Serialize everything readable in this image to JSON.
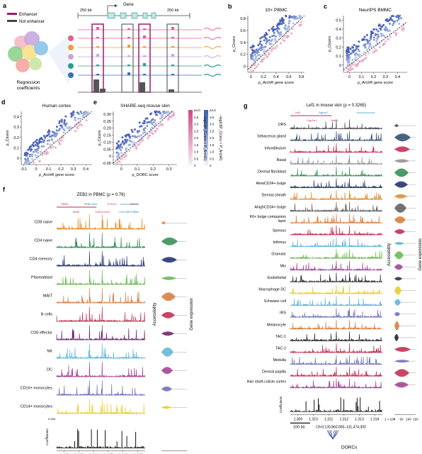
{
  "panel_a": {
    "letter": "a",
    "gene_label": "Gene",
    "left_span": "250 kb",
    "right_span": "250 kb",
    "legend_enhancer": "Enhancer",
    "legend_not_enhancer": "Not enhancer",
    "regression_line1": "Regression",
    "regression_line2": "coefficients"
  },
  "scatter_panels": [
    {
      "letter": "b",
      "title": "10× PBMC",
      "ylabel": "ρ_Cicero",
      "xlabel": "ρ_ArchR gene score",
      "xticks": [
        "0",
        "0.2",
        "0.4",
        "0.6",
        "0.8"
      ],
      "yticks": [
        "0",
        "0.2",
        "0.4",
        "0.6",
        "0.8"
      ],
      "xrange": [
        -0.05,
        0.85
      ],
      "yrange": [
        -0.1,
        0.85
      ],
      "seed": 11
    },
    {
      "letter": "c",
      "title": "NeurIPS BMMC",
      "ylabel": "ρ_Cicero",
      "xlabel": "ρ_ArchR gene score",
      "xticks": [
        "0",
        "0.1",
        "0.2",
        "0.3",
        "0.4"
      ],
      "yticks": [
        "0",
        "0.1",
        "0.2",
        "0.3",
        "0.4",
        "0.5"
      ],
      "xrange": [
        -0.05,
        0.48
      ],
      "yrange": [
        -0.08,
        0.55
      ],
      "seed": 23
    },
    {
      "letter": "d",
      "title": "Human cortex",
      "ylabel": "ρ_Cicero",
      "xlabel": "ρ_ArchR gene score",
      "xticks": [
        "-0.1",
        "0",
        "0.1",
        "0.2",
        "0.3",
        "0.4"
      ],
      "yticks": [
        "0",
        "0.1",
        "0.2",
        "0.3",
        "0.4"
      ],
      "xrange": [
        -0.12,
        0.45
      ],
      "yrange": [
        -0.06,
        0.45
      ],
      "seed": 37
    },
    {
      "letter": "e",
      "title": "SHARE-seq mouse skin",
      "ylabel": "ρ_Cicero",
      "xlabel": "ρ_DORC score",
      "xticks": [
        "0",
        "0.1",
        "0.2",
        "0.3"
      ],
      "yticks": [
        "-0.05",
        "0",
        "0.05",
        "0.10",
        "0.15",
        "0.20",
        "0.25",
        "0.30"
      ],
      "xrange": [
        -0.05,
        0.35
      ],
      "yrange": [
        -0.06,
        0.32
      ],
      "seed": 53
    }
  ],
  "colorbar": {
    "ticks": [
      "≥4.0",
      "3.5",
      "3.0",
      "2.5",
      "2.0",
      "1.5",
      "1.0",
      "0.5",
      "0"
    ],
    "label_pink": "−log10(P_Cicero < P_ArchR)",
    "label_blue": "−log10(P_Cicero > P_ArchR)"
  },
  "panel_f": {
    "letter": "f",
    "title": "ZEB2 in PBMC (ρ = 0.76)",
    "genes": [
      "ZEB2",
      "ZEB2",
      "ZEB2-AS1",
      "LINC01412",
      "GTDC1",
      "LOC105373856",
      "TEX41"
    ],
    "tracks": [
      {
        "label": "CD8 naive",
        "color": "#e08a2e"
      },
      {
        "label": "CD4 naive",
        "color": "#2f8a52"
      },
      {
        "label": "CD4 memory",
        "color": "#1d2a6b"
      },
      {
        "label": "Plasmablast",
        "color": "#66b94a"
      },
      {
        "label": "MAIT",
        "color": "#d9793a"
      },
      {
        "label": "B cells",
        "color": "#c0284a"
      },
      {
        "label": "CD8 effector",
        "color": "#6a1d6a"
      },
      {
        "label": "NK",
        "color": "#5bb4d6"
      },
      {
        "label": "DC",
        "color": "#a23c8c"
      },
      {
        "label": "CD16+ monocytes",
        "color": "#6b6fb8"
      },
      {
        "label": "CD14+ monocytes",
        "color": "#e6cf24"
      }
    ],
    "coef_label": "Coefficients",
    "coef_tick": "0.005",
    "xticks": [
      "1.442",
      "1.443",
      "1.444",
      "1.445",
      "1.446",
      "1.447"
    ],
    "x_multiplier": "1 × 10⁸",
    "scale_bar": "100 kb",
    "coord": "Chr2:144,134,000–144,775,000",
    "access_label": "Accessibility",
    "gene_expr_label": "Gene expression",
    "violin_ticks": [
      "0",
      "50",
      "100"
    ]
  },
  "panel_g": {
    "letter": "g",
    "title": "Lef1 in mouse skin (ρ = 0.3265)",
    "genes": [
      "Lef1",
      "Cyp2u1",
      "Sgms2",
      "Hadh"
    ],
    "tracks": [
      {
        "label": "ORS",
        "color": "#4a4a4a"
      },
      {
        "label": "Sebaceous gland",
        "color": "#2a4a6b"
      },
      {
        "label": "Infundibulum",
        "color": "#c0284a"
      },
      {
        "label": "Basal",
        "color": "#8f8f8f"
      },
      {
        "label": "Dermal fibroblast",
        "color": "#2f8a52"
      },
      {
        "label": "AlowCD34+ bulge",
        "color": "#1d2a6b"
      },
      {
        "label": "Dermal sheath",
        "color": "#e08a2e"
      },
      {
        "label": "AhighCD34+ bulge",
        "color": "#5a5a5a"
      },
      {
        "label": "K6+ bulge companion layer",
        "color": "#d9793a"
      },
      {
        "label": "Spinous",
        "color": "#c0284a"
      },
      {
        "label": "Isthmus",
        "color": "#5bb4d6"
      },
      {
        "label": "Granular",
        "color": "#66b94a"
      },
      {
        "label": "Mix",
        "color": "#a23c8c"
      },
      {
        "label": "Endothelial",
        "color": "#2a2a2a"
      },
      {
        "label": "Macrophage DC",
        "color": "#e6cf24"
      },
      {
        "label": "Schwann cell",
        "color": "#5bb4d6"
      },
      {
        "label": "IRS",
        "color": "#6b6fb8"
      },
      {
        "label": "Melanocyte",
        "color": "#d9793a"
      },
      {
        "label": "TAC-1",
        "color": "#1a1a1a"
      },
      {
        "label": "TAC-2",
        "color": "#c0284a"
      },
      {
        "label": "Medulla",
        "color": "#6b6fb8"
      },
      {
        "label": "Dermal papilla",
        "color": "#c0284a"
      },
      {
        "label": "Hair shaft-cuticle.cortex",
        "color": "#a23c8c"
      }
    ],
    "coef_label": "Coefficients",
    "xticks": [
      "1.309",
      "1.310",
      "1.311",
      "1.312",
      "1.313",
      "1.314"
    ],
    "x_multiplier": "1 × 10⁸",
    "scale_bar": "100 kb",
    "coord": "Chr3:130,860,000–131,474,300",
    "access_label": "Accessibility",
    "gene_expr_label": "Gene expression",
    "violin_ticks": [
      "0",
      "50",
      "100",
      "150"
    ],
    "dorc_label": "DORCs"
  }
}
